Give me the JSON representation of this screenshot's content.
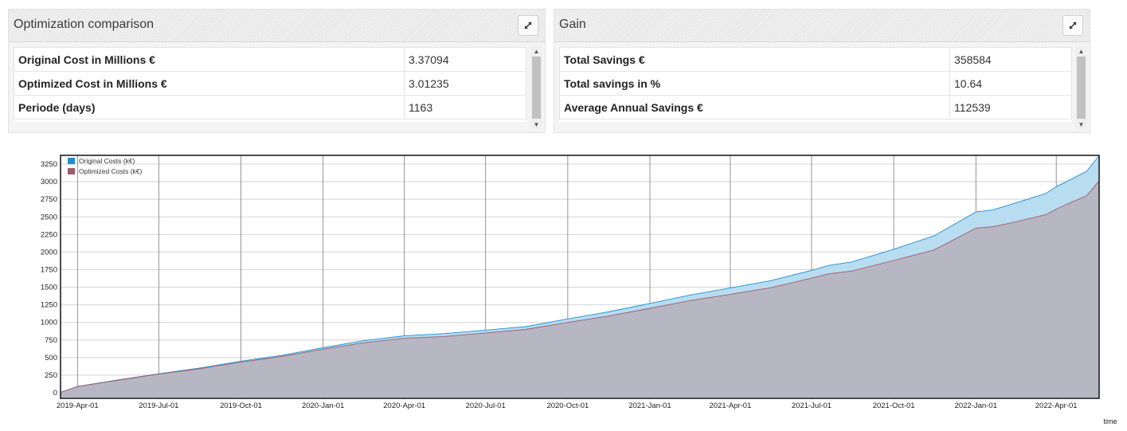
{
  "left_panel": {
    "title": "Optimization comparison",
    "rows": [
      {
        "label": "Original Cost in Millions €",
        "value": "3.37094"
      },
      {
        "label": "Optimized Cost in Millions €",
        "value": "3.01235"
      },
      {
        "label": "Periode (days)",
        "value": "1163"
      }
    ]
  },
  "right_panel": {
    "title": "Gain",
    "rows": [
      {
        "label": "Total Savings €",
        "value": "358584"
      },
      {
        "label": "Total savings in %",
        "value": "10.64"
      },
      {
        "label": "Average Annual Savings €",
        "value": "112539"
      }
    ]
  },
  "icons": {
    "expand": "expand-icon",
    "scroll_up": "scroll-up-arrow-icon",
    "scroll_down": "scroll-down-arrow-icon"
  },
  "chart_data": {
    "type": "area",
    "xlabel": "time",
    "ylabel": "",
    "ylim": [
      0,
      3375
    ],
    "xlim": [
      "2019-03-13",
      "2022-05-19"
    ],
    "yticks": [
      0,
      250,
      500,
      750,
      1000,
      1250,
      1500,
      1750,
      2000,
      2250,
      2500,
      2750,
      3000,
      3250
    ],
    "xtick_labels": [
      "2019-Apr-01",
      "2019-Jul-01",
      "2019-Oct-01",
      "2020-Jan-01",
      "2020-Apr-01",
      "2020-Jul-01",
      "2020-Oct-01",
      "2021-Jan-01",
      "2021-Apr-01",
      "2021-Jul-01",
      "2021-Oct-01",
      "2022-Jan-01",
      "2022-Apr-01"
    ],
    "xtick_dates": [
      "2019-04-01",
      "2019-07-01",
      "2019-10-01",
      "2020-01-01",
      "2020-04-01",
      "2020-07-01",
      "2020-10-01",
      "2021-01-01",
      "2021-04-01",
      "2021-07-01",
      "2021-10-01",
      "2022-01-01",
      "2022-04-01"
    ],
    "grid": true,
    "legend_position": "top-left",
    "x": [
      "2019-03-13",
      "2019-04-01",
      "2019-05-15",
      "2019-07-01",
      "2019-08-15",
      "2019-10-01",
      "2019-11-15",
      "2020-01-01",
      "2020-02-15",
      "2020-04-01",
      "2020-05-15",
      "2020-07-01",
      "2020-08-15",
      "2020-10-01",
      "2020-11-15",
      "2021-01-01",
      "2021-02-15",
      "2021-04-01",
      "2021-05-15",
      "2021-07-01",
      "2021-07-20",
      "2021-08-15",
      "2021-10-01",
      "2021-11-15",
      "2022-01-01",
      "2022-01-20",
      "2022-02-15",
      "2022-03-20",
      "2022-04-01",
      "2022-04-20",
      "2022-05-05",
      "2022-05-19"
    ],
    "series": [
      {
        "name": "Original Costs (k€)",
        "color": "#1f8fd6",
        "fill": "#b8dcf0",
        "values": [
          5,
          90,
          180,
          270,
          350,
          450,
          530,
          640,
          740,
          810,
          840,
          890,
          940,
          1050,
          1150,
          1270,
          1390,
          1490,
          1590,
          1740,
          1810,
          1860,
          2040,
          2230,
          2570,
          2600,
          2700,
          2830,
          2930,
          3050,
          3150,
          3371
        ]
      },
      {
        "name": "Optimized Costs (k€)",
        "color": "#a05a6a",
        "fill": "#b7b7c4",
        "values": [
          5,
          88,
          175,
          265,
          340,
          435,
          515,
          620,
          710,
          775,
          800,
          850,
          900,
          1000,
          1090,
          1200,
          1310,
          1400,
          1490,
          1630,
          1690,
          1730,
          1880,
          2030,
          2340,
          2360,
          2430,
          2530,
          2610,
          2720,
          2800,
          3012
        ]
      }
    ]
  }
}
